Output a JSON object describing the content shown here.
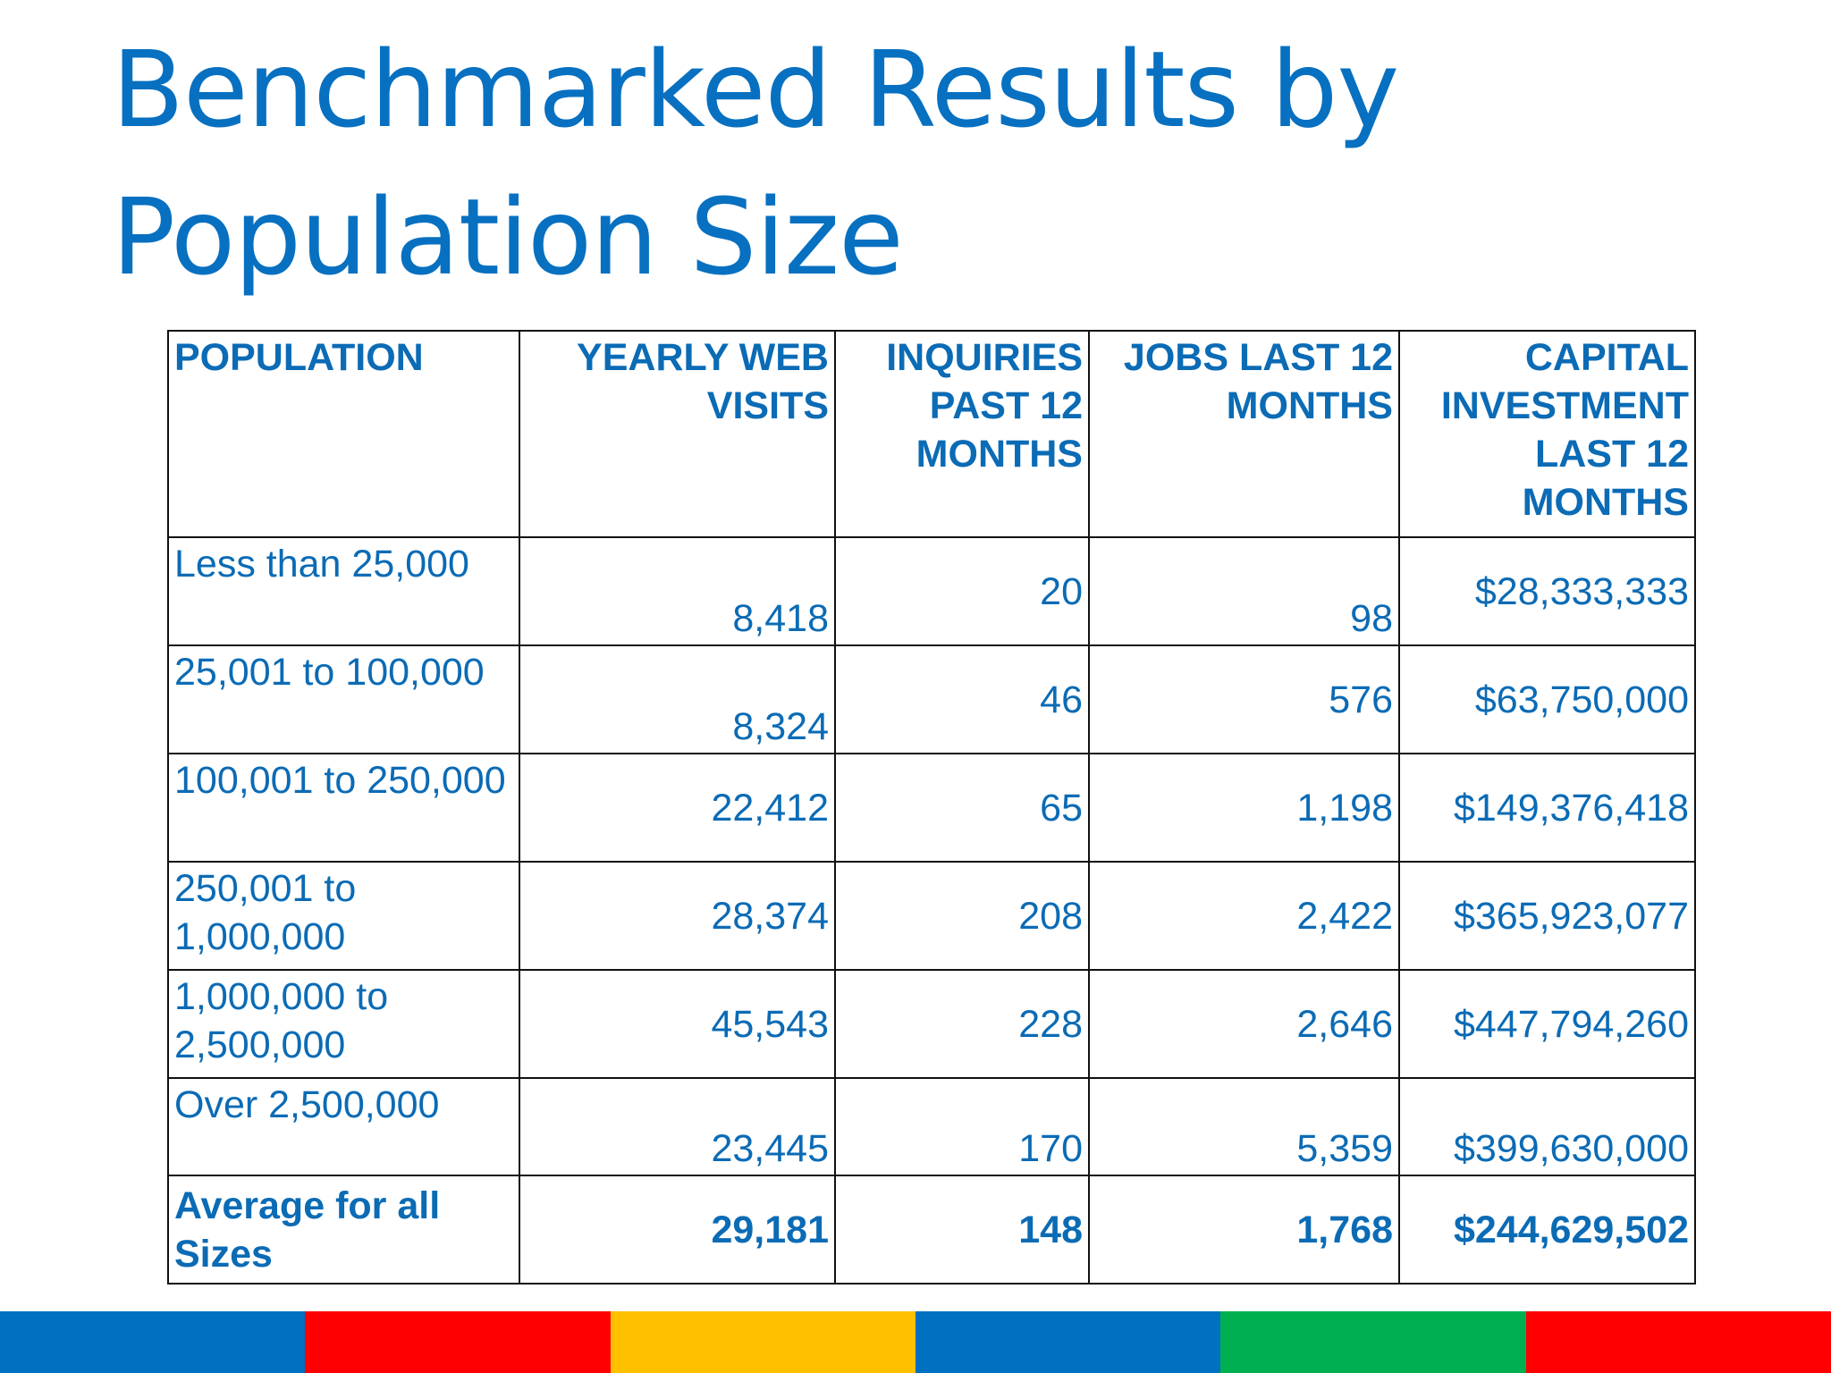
{
  "title": "Benchmarked Results by Population Size",
  "table": {
    "headers": [
      "POPULATION",
      "YEARLY WEB VISITS",
      "INQUIRIES PAST 12 MONTHS",
      "JOBS LAST 12 MONTHS",
      "CAPITAL INVESTMENT LAST 12 MONTHS"
    ],
    "rows": [
      [
        "Less than 25,000",
        "8,418",
        "20",
        "98",
        "$28,333,333"
      ],
      [
        "25,001 to 100,000",
        "8,324",
        "46",
        "576",
        "$63,750,000"
      ],
      [
        "100,001 to 250,000",
        "22,412",
        "65",
        "1,198",
        "$149,376,418"
      ],
      [
        "250,001 to 1,000,000",
        "28,374",
        "208",
        "2,422",
        "$365,923,077"
      ],
      [
        "1,000,000 to 2,500,000",
        "45,543",
        "228",
        "2,646",
        "$447,794,260"
      ],
      [
        "Over 2,500,000",
        "23,445",
        "170",
        "5,359",
        "$399,630,000"
      ]
    ],
    "average": [
      "Average for all Sizes",
      "29,181",
      "148",
      "1,768",
      "$244,629,502"
    ]
  },
  "colors": {
    "title": "#0870c0",
    "table_text": "#0b6bb5",
    "border": "#111111",
    "footer_segments": [
      "#0070c0",
      "#ff0000",
      "#ffc000",
      "#0070c0",
      "#00b050",
      "#ff0000"
    ]
  }
}
